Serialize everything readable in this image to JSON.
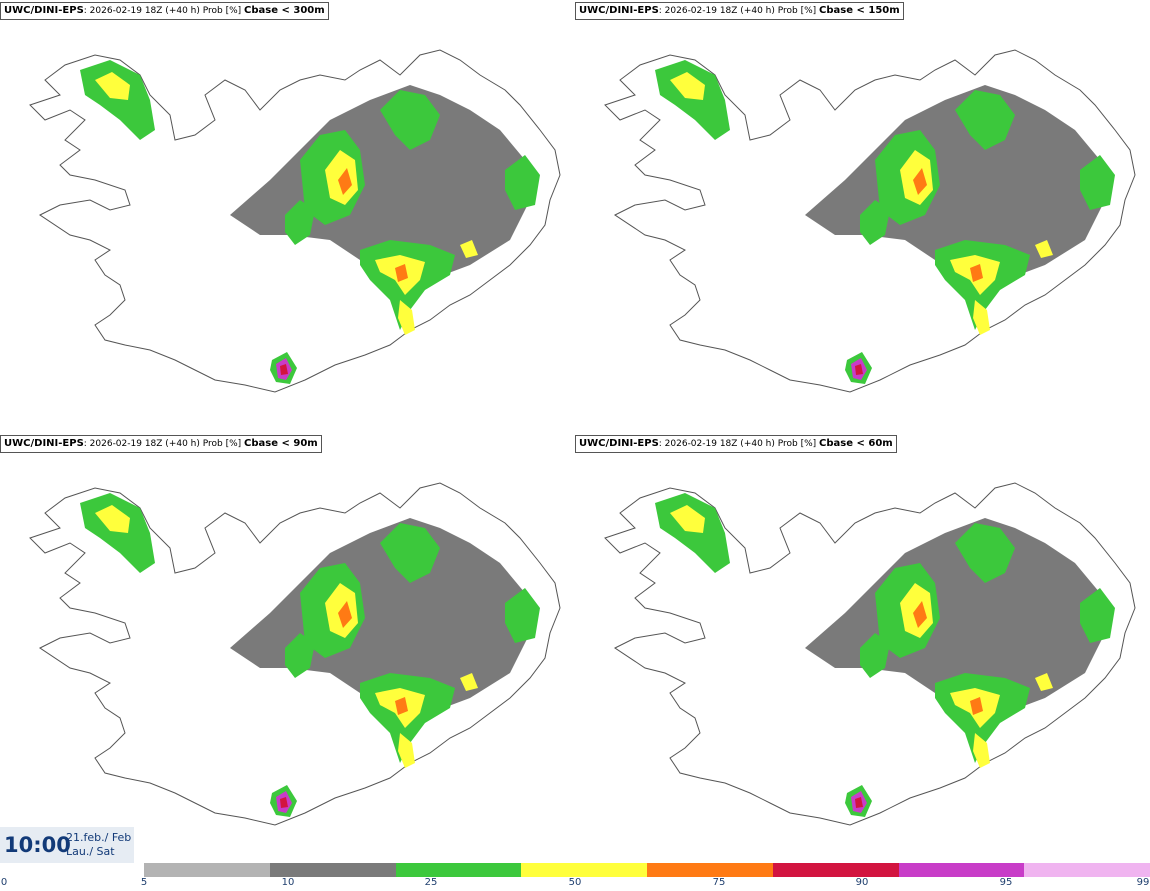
{
  "panels": [
    {
      "model": "UWC/DINI-EPS",
      "info": ": 2026-02-19 18Z (+40 h) Prob [%]",
      "variable": "Cbase < 300m"
    },
    {
      "model": "UWC/DINI-EPS",
      "info": ": 2026-02-19 18Z (+40 h) Prob [%]",
      "variable": "Cbase < 150m"
    },
    {
      "model": "UWC/DINI-EPS",
      "info": ": 2026-02-19 18Z (+40 h) Prob [%]",
      "variable": "Cbase < 90m"
    },
    {
      "model": "UWC/DINI-EPS",
      "info": ": 2026-02-19 18Z (+40 h) Prob [%]",
      "variable": "Cbase < 60m"
    }
  ],
  "valid_time": {
    "time": "10:00",
    "date_line1": "21.feb./ Feb",
    "date_line2": "Lau./ Sat"
  },
  "colorbar": {
    "ticks": [
      "0",
      "5",
      "10",
      "25",
      "50",
      "75",
      "90",
      "95",
      "99"
    ],
    "colors": [
      "#b3b3b3",
      "#7a7a7a",
      "#3cc83c",
      "#ffff3c",
      "#ff7a14",
      "#d21440",
      "#c83cc8",
      "#f0b4f0"
    ]
  }
}
